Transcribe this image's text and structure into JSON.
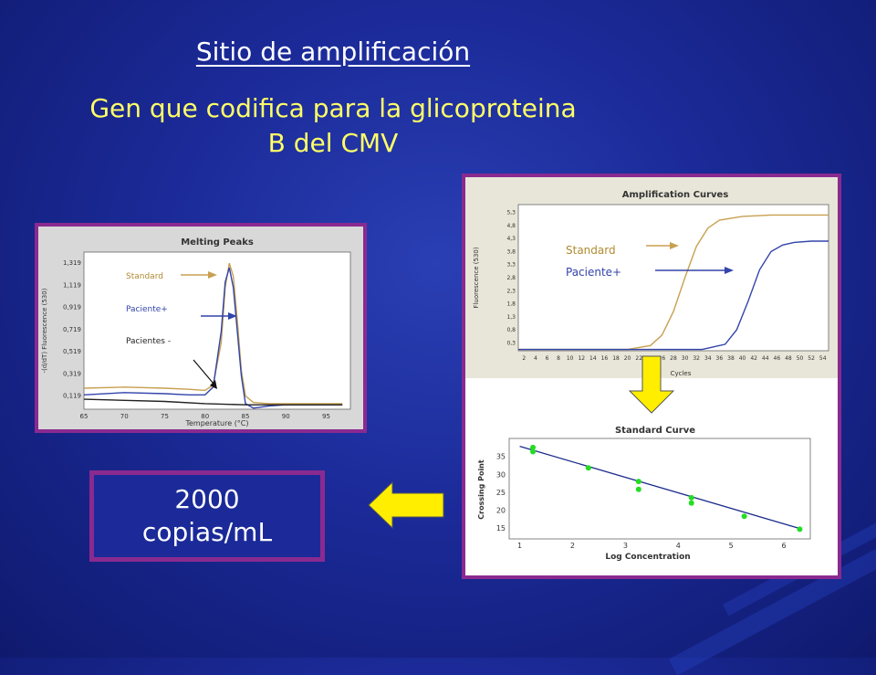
{
  "slide": {
    "title": "Sitio de amplificación",
    "subtitle_line1": "Gen que codifica para la glicoproteina",
    "subtitle_line2": "B del CMV",
    "result_value": "2000",
    "result_unit": "copias/mL"
  },
  "colors": {
    "standard": "#c8a050",
    "paciente_pos": "#3344aa",
    "paciente_neg": "#222222",
    "panel_border": "#8a2a90",
    "subtitle": "#ffff66",
    "yellow_arrow": "#ffee00"
  },
  "chart_data": [
    {
      "type": "line",
      "title": "Melting Peaks",
      "xlabel": "Temperature (°C)",
      "ylabel": "-(d/dT) Fluorescence (530)",
      "xlim": [
        65,
        98
      ],
      "ylim": [
        0,
        1.42
      ],
      "x_ticks": [
        "65",
        "70",
        "75",
        "80",
        "85",
        "90",
        "95"
      ],
      "y_ticks": [
        "0,119",
        "0,319",
        "0,519",
        "0,719",
        "0,919",
        "1,119",
        "1,319"
      ],
      "annotations": [
        "Standard",
        "Paciente+",
        "Pacientes -"
      ],
      "series": [
        {
          "name": "Standard",
          "x": [
            65,
            70,
            75,
            78,
            80,
            81,
            82,
            82.5,
            83,
            83.5,
            84,
            84.5,
            85,
            86,
            88,
            90,
            95,
            97
          ],
          "y": [
            0.19,
            0.2,
            0.19,
            0.18,
            0.17,
            0.22,
            0.6,
            1.1,
            1.32,
            1.2,
            0.8,
            0.35,
            0.12,
            0.06,
            0.05,
            0.05,
            0.05,
            0.05
          ]
        },
        {
          "name": "Paciente+",
          "x": [
            65,
            70,
            75,
            78,
            80,
            81,
            82,
            82.5,
            83,
            83.5,
            84,
            84.5,
            85,
            86,
            88,
            90,
            95,
            97
          ],
          "y": [
            0.13,
            0.15,
            0.14,
            0.13,
            0.13,
            0.2,
            0.7,
            1.15,
            1.28,
            1.1,
            0.7,
            0.3,
            0.05,
            0.01,
            0.03,
            0.04,
            0.04,
            0.04
          ]
        },
        {
          "name": "Pacientes -",
          "x": [
            65,
            70,
            75,
            80,
            85,
            90,
            95,
            97
          ],
          "y": [
            0.09,
            0.08,
            0.07,
            0.05,
            0.04,
            0.04,
            0.04,
            0.04
          ]
        }
      ]
    },
    {
      "type": "line",
      "title": "Amplification Curves",
      "xlabel": "Cycles",
      "ylabel": "Fluorescence (530)",
      "xlim": [
        1,
        55
      ],
      "ylim": [
        0,
        5.6
      ],
      "x_ticks": [
        "2",
        "4",
        "6",
        "8",
        "10",
        "12",
        "14",
        "16",
        "18",
        "20",
        "22",
        "24",
        "26",
        "28",
        "30",
        "32",
        "34",
        "36",
        "38",
        "40",
        "42",
        "44",
        "46",
        "48",
        "50",
        "52",
        "54"
      ],
      "y_ticks": [
        "0,3",
        "0,8",
        "1,3",
        "1,8",
        "2,3",
        "2,8",
        "3,3",
        "3,8",
        "4,3",
        "4,8",
        "5,3"
      ],
      "annotations": [
        "Standard",
        "Paciente+"
      ],
      "series": [
        {
          "name": "Standard",
          "x": [
            1,
            20,
            24,
            26,
            28,
            30,
            32,
            34,
            36,
            40,
            45,
            50,
            55
          ],
          "y": [
            0.05,
            0.05,
            0.2,
            0.6,
            1.5,
            2.8,
            4.0,
            4.7,
            5.0,
            5.15,
            5.2,
            5.2,
            5.2
          ]
        },
        {
          "name": "Paciente+",
          "x": [
            1,
            33,
            37,
            39,
            41,
            43,
            45,
            47,
            49,
            52,
            55
          ],
          "y": [
            0.05,
            0.05,
            0.25,
            0.8,
            1.9,
            3.1,
            3.8,
            4.05,
            4.15,
            4.2,
            4.2
          ]
        }
      ]
    },
    {
      "type": "scatter",
      "title": "Standard Curve",
      "xlabel": "Log Concentration",
      "ylabel": "Crossing Point",
      "xlim": [
        0.8,
        6.5
      ],
      "ylim": [
        12,
        40
      ],
      "x_ticks": [
        "1",
        "2",
        "3",
        "4",
        "5",
        "6"
      ],
      "y_ticks": [
        "15",
        "20",
        "25",
        "30",
        "35"
      ],
      "points": {
        "x": [
          1.25,
          1.25,
          2.3,
          3.25,
          3.25,
          4.25,
          4.25,
          5.25,
          6.3
        ],
        "y": [
          37.5,
          36.3,
          31.8,
          28.0,
          25.8,
          23.5,
          22.0,
          18.3,
          14.7
        ]
      },
      "fit_line": {
        "x": [
          1.0,
          6.3
        ],
        "y": [
          37.8,
          14.9
        ]
      }
    }
  ]
}
